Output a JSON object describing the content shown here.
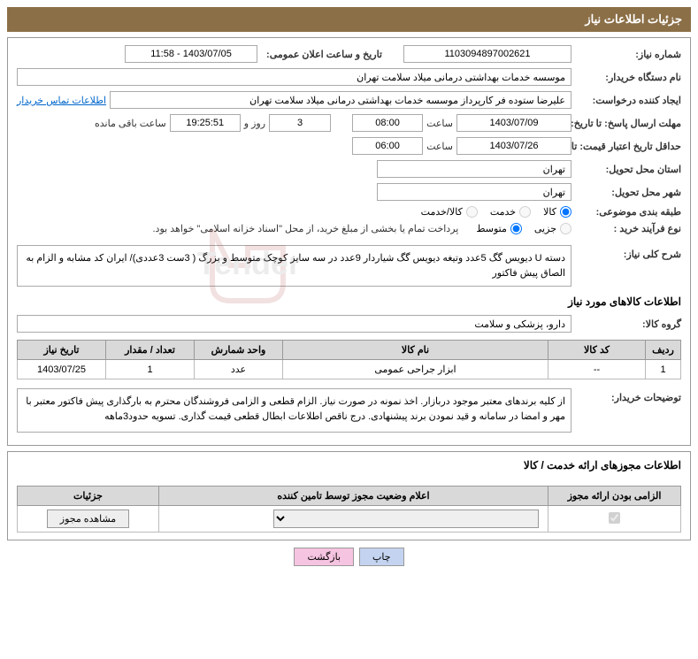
{
  "header": {
    "title": "جزئیات اطلاعات نیاز"
  },
  "fields": {
    "need_number_label": "شماره نیاز:",
    "need_number": "1103094897002621",
    "announce_date_label": "تاریخ و ساعت اعلان عمومی:",
    "announce_date": "1403/07/05 - 11:58",
    "buyer_org_label": "نام دستگاه خریدار:",
    "buyer_org": "موسسه خدمات بهداشتی درمانی میلاد سلامت تهران",
    "requester_label": "ایجاد کننده درخواست:",
    "requester": "علیرضا ستوده فر کارپرداز موسسه خدمات بهداشتی درمانی میلاد سلامت تهران",
    "buyer_contact_link": "اطلاعات تماس خریدار",
    "response_deadline_label": "مهلت ارسال پاسخ: تا تاریخ:",
    "response_date": "1403/07/09",
    "time_label": "ساعت",
    "response_time": "08:00",
    "days_count": "3",
    "days_text": "روز و",
    "countdown": "19:25:51",
    "remaining_text": "ساعت باقی مانده",
    "price_validity_label": "حداقل تاریخ اعتبار قیمت: تا تاریخ:",
    "price_validity_date": "1403/07/26",
    "price_validity_time": "06:00",
    "province_label": "استان محل تحویل:",
    "province": "تهران",
    "city_label": "شهر محل تحویل:",
    "city": "تهران",
    "category_label": "طبقه بندی موضوعی:",
    "cat_goods": "کالا",
    "cat_service": "خدمت",
    "cat_both": "کالا/خدمت",
    "process_type_label": "نوع فرآیند خرید :",
    "proc_partial": "جزیی",
    "proc_medium": "متوسط",
    "process_note": "پرداخت تمام یا بخشی از مبلغ خرید، از محل \"اسناد خزانه اسلامی\" خواهد بود.",
    "summary_label": "شرح کلی نیاز:",
    "summary": "دسته U دیویس گگ 5عدد  وتیغه دیویس گگ شیاردار 9عدد در سه سایز کوچک متوسط و بزرگ ( 3ست 3عددی)/ ایران کد مشابه و الزام به الصاق پیش فاکتور",
    "goods_section": "اطلاعات کالاهای مورد نیاز",
    "goods_group_label": "گروه کالا:",
    "goods_group": "دارو، پزشکی و سلامت",
    "buyer_notes_label": "توضیحات خریدار:",
    "buyer_notes": "از کلیه برندهای معتبر موجود دربازار. اخذ نمونه در صورت نیاز. الزام قطعی و الزامی فروشندگان محترم به بارگذاری پیش فاکتور معتبر با مهر و امضا در سامانه و قید نمودن برند پیشنهادی. درج ناقص اطلاعات ابطال قطعی قیمت گذاری. تسویه حدود3ماهه"
  },
  "goods_table": {
    "headers": {
      "row": "ردیف",
      "code": "کد کالا",
      "name": "نام کالا",
      "unit": "واحد شمارش",
      "qty": "تعداد / مقدار",
      "date": "تاریخ نیاز"
    },
    "rows": [
      {
        "row": "1",
        "code": "--",
        "name": "ابزار جراحی عمومی",
        "unit": "عدد",
        "qty": "1",
        "date": "1403/07/25"
      }
    ]
  },
  "permits": {
    "section_title": "اطلاعات مجوزهای ارائه خدمت / کالا",
    "headers": {
      "mandatory": "الزامی بودن ارائه مجوز",
      "status": "اعلام وضعیت مجوز توسط تامین کننده",
      "details": "جزئیات"
    },
    "view_btn": "مشاهده مجوز"
  },
  "buttons": {
    "print": "چاپ",
    "back": "بازگشت"
  }
}
